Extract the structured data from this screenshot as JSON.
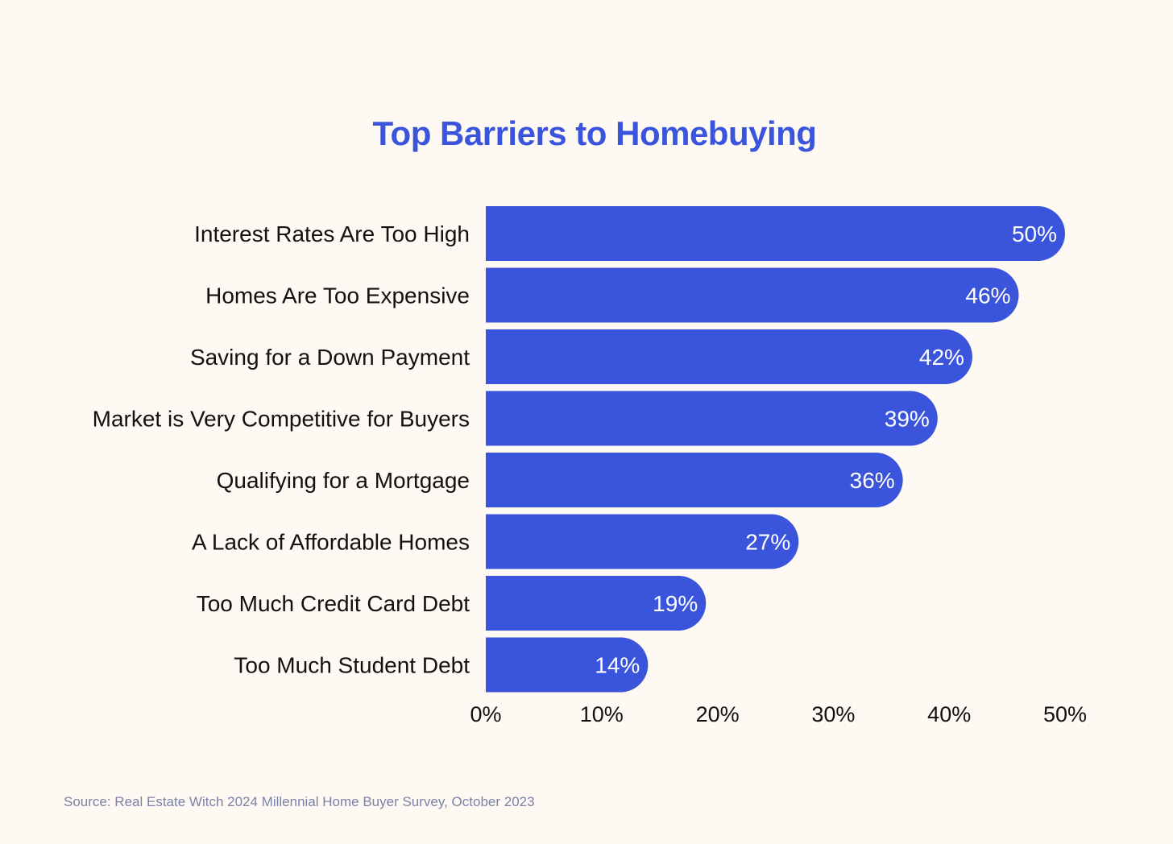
{
  "chart_data": {
    "type": "bar",
    "orientation": "horizontal",
    "title": "Top Barriers to Homebuying",
    "categories": [
      "Interest Rates Are Too High",
      "Homes Are Too Expensive",
      "Saving for a Down Payment",
      "Market is Very Competitive for Buyers",
      "Qualifying for a Mortgage",
      "A Lack of Affordable Homes",
      "Too Much Credit Card Debt",
      "Too Much Student Debt"
    ],
    "values": [
      50,
      46,
      42,
      39,
      36,
      27,
      19,
      14
    ],
    "value_labels": [
      "50%",
      "46%",
      "42%",
      "39%",
      "36%",
      "27%",
      "19%",
      "14%"
    ],
    "x_ticks": [
      "0%",
      "10%",
      "20%",
      "30%",
      "40%",
      "50%"
    ],
    "x_tick_values": [
      0,
      10,
      20,
      30,
      40,
      50
    ],
    "xlim": [
      0,
      50
    ],
    "grid": false,
    "legend": "none",
    "bar_color": "#3a55dc"
  },
  "source": "Source: Real Estate Witch 2024 Millennial Home Buyer Survey, October 2023",
  "colors": {
    "background": "#fef9f2",
    "title": "#3a55dc",
    "bar": "#3a55dc",
    "source": "#7a82a8"
  }
}
